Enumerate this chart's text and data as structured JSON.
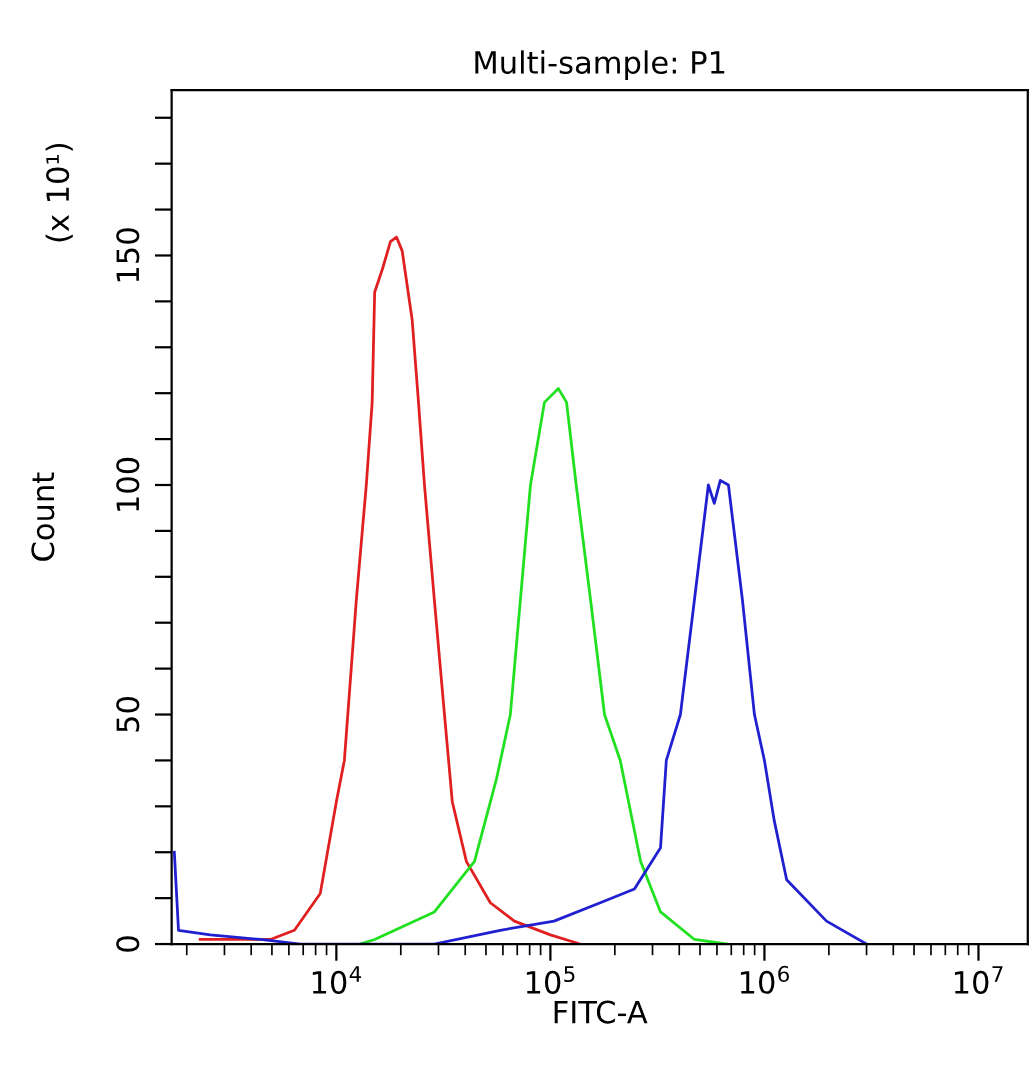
{
  "chart_data": {
    "type": "line",
    "title": "Multi-sample: P1",
    "xlabel": "FITC-A",
    "ylabel": "Count",
    "annotations": [
      "(x 10¹)"
    ],
    "log": "x",
    "grid": false,
    "legend": false,
    "marker": "none",
    "line_style": "solid",
    "xlim": [
      1700,
      17000000
    ],
    "ylim": [
      0,
      186
    ],
    "xticks": [
      {
        "value": 10000,
        "label": "10$^{4}$"
      },
      {
        "value": 100000,
        "label": "10$^{5}$"
      },
      {
        "value": 1000000,
        "label": "10$^{6}$"
      },
      {
        "value": 10000000,
        "label": "10$^{7}$"
      }
    ],
    "yticks": [
      0,
      {
        "value": 10,
        "label": null
      },
      {
        "value": 20,
        "label": null
      },
      {
        "value": 30,
        "label": null
      },
      {
        "value": 40,
        "label": null
      },
      50,
      {
        "value": 60,
        "label": null
      },
      {
        "value": 70,
        "label": null
      },
      {
        "value": 80,
        "label": null
      },
      {
        "value": 90,
        "label": null
      },
      100,
      {
        "value": 110,
        "label": null
      },
      {
        "value": 120,
        "label": null
      },
      {
        "value": 130,
        "label": null
      },
      {
        "value": 140,
        "label": null
      },
      150,
      {
        "value": 160,
        "label": null
      },
      {
        "value": 170,
        "label": null
      },
      {
        "value": 180,
        "label": null
      }
    ],
    "series": [
      {
        "color": "#e02020",
        "x": [
          2310,
          4920,
          6370,
          8410,
          10000,
          10900,
          12400,
          13800,
          14700,
          15100,
          16400,
          17900,
          19100,
          20300,
          22600,
          24200,
          25800,
          28700,
          32000,
          34800,
          40500,
          52400,
          67900,
          100000,
          138000
        ],
        "values": [
          1,
          1,
          3,
          11,
          31,
          40,
          75,
          100,
          118,
          142,
          147,
          153,
          154,
          151,
          136,
          118,
          100,
          75,
          50,
          31,
          18,
          9,
          5,
          2,
          0
        ]
      },
      {
        "color": "#20e020",
        "x": [
          12900,
          15100,
          28700,
          44200,
          56000,
          65000,
          72400,
          80700,
          93800,
          109000,
          119000,
          132000,
          154000,
          179000,
          212000,
          264000,
          327000,
          471000,
          664000
        ],
        "values": [
          0,
          1,
          7,
          18,
          36,
          50,
          75,
          100,
          118,
          121,
          118,
          100,
          75,
          50,
          40,
          18,
          7,
          1,
          0
        ]
      },
      {
        "color": "#2020d0",
        "x": [
          1750,
          1830,
          2580,
          4420,
          6790,
          28700,
          58300,
          104000,
          171000,
          247000,
          327000,
          348000,
          405000,
          471000,
          547000,
          583000,
          622000,
          679000,
          789000,
          898000,
          1000000,
          1110000,
          1270000,
          1950000,
          3000000
        ],
        "values": [
          20,
          3,
          2,
          1,
          0,
          0,
          3,
          5,
          9,
          12,
          21,
          40,
          50,
          75,
          100,
          96,
          101,
          100,
          75,
          50,
          40,
          27,
          14,
          5,
          0
        ]
      }
    ]
  }
}
